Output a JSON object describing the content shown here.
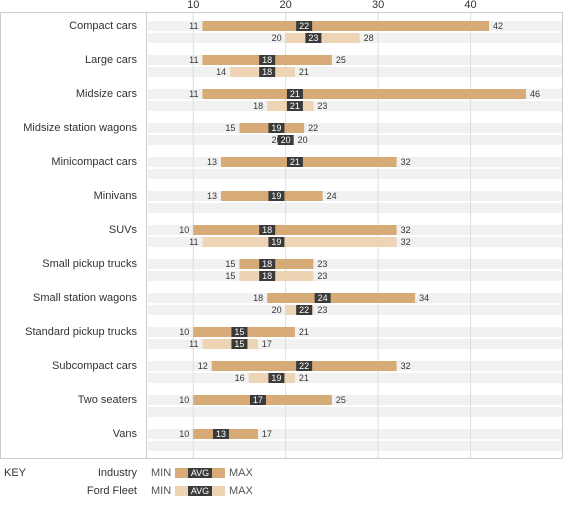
{
  "chart_data": {
    "type": "range",
    "categories": [
      "Compact cars",
      "Large cars",
      "Midsize cars",
      "Midsize station wagons",
      "Minicompact cars",
      "Minivans",
      "SUVs",
      "Small pickup trucks",
      "Small station wagons",
      "Standard pickup trucks",
      "Subcompact cars",
      "Two seaters",
      "Vans"
    ],
    "series": [
      {
        "name": "Industry",
        "color": "#d6ab78",
        "min": [
          11,
          11,
          11,
          15,
          13,
          13,
          10,
          15,
          18,
          10,
          12,
          10,
          10
        ],
        "avg": [
          22,
          18,
          21,
          19,
          21,
          19,
          18,
          18,
          24,
          15,
          22,
          17,
          13
        ],
        "max": [
          42,
          25,
          46,
          22,
          32,
          24,
          32,
          23,
          34,
          21,
          32,
          25,
          17
        ]
      },
      {
        "name": "Ford Fleet",
        "color": "#ecd4b4",
        "min": [
          20,
          14,
          18,
          20,
          null,
          null,
          11,
          15,
          20,
          11,
          16,
          null,
          null
        ],
        "avg": [
          23,
          18,
          21,
          20,
          null,
          null,
          19,
          18,
          22,
          15,
          19,
          null,
          null
        ],
        "max": [
          28,
          21,
          23,
          20,
          null,
          null,
          32,
          23,
          23,
          17,
          21,
          null,
          null
        ]
      }
    ],
    "xlim": [
      5,
      50
    ],
    "xticks": [
      10,
      20,
      30,
      40
    ],
    "grid": true,
    "key": {
      "title": "KEY",
      "min": "MIN",
      "avg": "AVG",
      "max": "MAX"
    }
  }
}
